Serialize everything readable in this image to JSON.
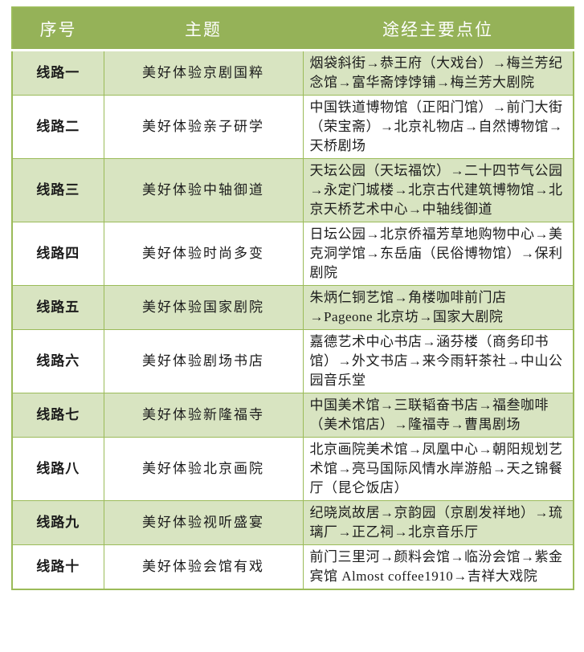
{
  "table": {
    "columns": [
      "序号",
      "主题",
      "途经主要点位"
    ],
    "rows": [
      {
        "no": "线路一",
        "theme": "美好体验京剧国粹",
        "route": "烟袋斜街→恭王府（大戏台）→梅兰芳纪念馆→富华斋饽饽铺→梅兰芳大剧院"
      },
      {
        "no": "线路二",
        "theme": "美好体验亲子研学",
        "route": "中国铁道博物馆（正阳门馆）→前门大街（荣宝斋）→北京礼物店→自然博物馆→天桥剧场"
      },
      {
        "no": "线路三",
        "theme": "美好体验中轴御道",
        "route": "天坛公园（天坛福饮）→二十四节气公园→永定门城楼→北京古代建筑博物馆→北京天桥艺术中心→中轴线御道"
      },
      {
        "no": "线路四",
        "theme": "美好体验时尚多变",
        "route": "日坛公园→北京侨福芳草地购物中心→美克洞学馆→东岳庙（民俗博物馆）→保利剧院"
      },
      {
        "no": "线路五",
        "theme": "美好体验国家剧院",
        "route": "朱炳仁铜艺馆→角楼咖啡前门店→Pageone 北京坊→国家大剧院"
      },
      {
        "no": "线路六",
        "theme": "美好体验剧场书店",
        "route": "嘉德艺术中心书店→涵芬楼（商务印书馆）→外文书店→来今雨轩茶社→中山公园音乐堂"
      },
      {
        "no": "线路七",
        "theme": "美好体验新隆福寺",
        "route": "中国美术馆→三联韬奋书店→福叁咖啡（美术馆店）→隆福寺→曹禺剧场"
      },
      {
        "no": "线路八",
        "theme": "美好体验北京画院",
        "route": "北京画院美术馆→凤凰中心→朝阳规划艺术馆→亮马国际风情水岸游船→天之锦餐厅（昆仑饭店）"
      },
      {
        "no": "线路九",
        "theme": "美好体验视听盛宴",
        "route": "纪晓岚故居→京韵园（京剧发祥地）→琉璃厂→正乙祠→北京音乐厅"
      },
      {
        "no": "线路十",
        "theme": "美好体验会馆有戏",
        "route": "前门三里河→颜料会馆→临汾会馆→紫金宾馆 Almost coffee1910→吉祥大戏院"
      }
    ]
  },
  "colors": {
    "header_bg": "#95b258",
    "header_text": "#ffffff",
    "row_alt_bg": "#d8e4c1",
    "border": "#9bbb59",
    "body_text": "#1c1c1c"
  }
}
